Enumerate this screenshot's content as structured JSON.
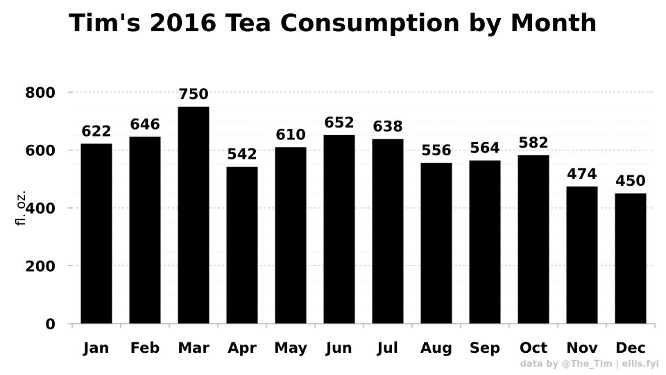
{
  "chart_data": {
    "type": "bar",
    "title": "Tim's 2016 Tea Consumption by Month",
    "ylabel": "fl. oz.",
    "xlabel": "",
    "categories": [
      "Jan",
      "Feb",
      "Mar",
      "Apr",
      "May",
      "Jun",
      "Jul",
      "Aug",
      "Sep",
      "Oct",
      "Nov",
      "Dec"
    ],
    "values": [
      622,
      646,
      750,
      542,
      610,
      652,
      638,
      556,
      564,
      582,
      474,
      450
    ],
    "ylim": [
      0,
      800
    ],
    "yticks": [
      0,
      200,
      400,
      600,
      800
    ],
    "bar_color": "#000000",
    "grid": true,
    "data_labels": true
  },
  "credit": "data by @The_Tim | ellis.fyi"
}
